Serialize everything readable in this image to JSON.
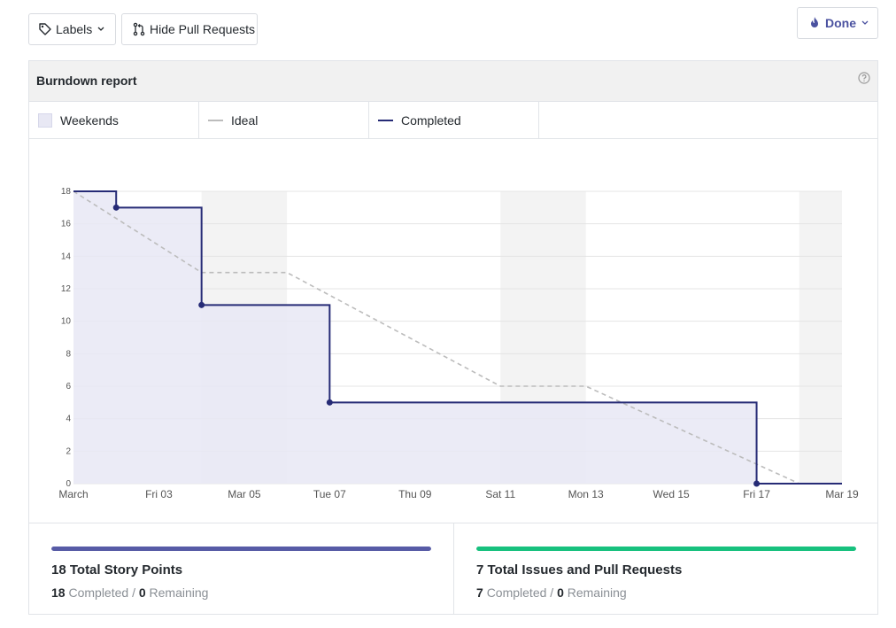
{
  "toolbar": {
    "labels_button": "Labels",
    "hide_pr_button": "Hide Pull Requests",
    "done_button": "Done"
  },
  "panel": {
    "title": "Burndown report"
  },
  "legend": {
    "weekends": "Weekends",
    "ideal": "Ideal",
    "completed": "Completed"
  },
  "colors": {
    "completed_line": "#262b76",
    "ideal_line": "#bcbcbc",
    "weekend_fill": "#f3f3f3",
    "completed_area": "#e8e8f4",
    "story_points_bar": "#575ba6",
    "issues_bar": "#17c17e"
  },
  "chart_data": {
    "type": "line",
    "xlabel": "",
    "ylabel": "",
    "ylim": [
      0,
      18
    ],
    "yticks": [
      0,
      2,
      4,
      6,
      8,
      10,
      12,
      14,
      16,
      18
    ],
    "xlim": [
      "2017-03-01",
      "2017-03-19"
    ],
    "x_tick_labels": [
      {
        "date": "2017-03-01",
        "label": "March"
      },
      {
        "date": "2017-03-03",
        "label": "Fri 03"
      },
      {
        "date": "2017-03-05",
        "label": "Mar 05"
      },
      {
        "date": "2017-03-07",
        "label": "Tue 07"
      },
      {
        "date": "2017-03-09",
        "label": "Thu 09"
      },
      {
        "date": "2017-03-11",
        "label": "Sat 11"
      },
      {
        "date": "2017-03-13",
        "label": "Mon 13"
      },
      {
        "date": "2017-03-15",
        "label": "Wed 15"
      },
      {
        "date": "2017-03-17",
        "label": "Fri 17"
      },
      {
        "date": "2017-03-19",
        "label": "Mar 19"
      }
    ],
    "weekends": [
      [
        "2017-03-04",
        "2017-03-06"
      ],
      [
        "2017-03-11",
        "2017-03-13"
      ],
      [
        "2017-03-18",
        "2017-03-19"
      ]
    ],
    "series": [
      {
        "name": "Ideal",
        "style": "dashed",
        "points": [
          {
            "x": "2017-03-01",
            "y": 18
          },
          {
            "x": "2017-03-04",
            "y": 13
          },
          {
            "x": "2017-03-06",
            "y": 13
          },
          {
            "x": "2017-03-11",
            "y": 6
          },
          {
            "x": "2017-03-13",
            "y": 6
          },
          {
            "x": "2017-03-18",
            "y": 0
          }
        ]
      },
      {
        "name": "Completed",
        "style": "step",
        "points": [
          {
            "x": "2017-03-01",
            "y": 18
          },
          {
            "x": "2017-03-02",
            "y": 17
          },
          {
            "x": "2017-03-04",
            "y": 11
          },
          {
            "x": "2017-03-07",
            "y": 5
          },
          {
            "x": "2017-03-17",
            "y": 0
          },
          {
            "x": "2017-03-19",
            "y": 0
          }
        ],
        "markers": [
          {
            "x": "2017-03-02",
            "y": 17
          },
          {
            "x": "2017-03-04",
            "y": 11
          },
          {
            "x": "2017-03-07",
            "y": 5
          },
          {
            "x": "2017-03-17",
            "y": 0
          }
        ]
      }
    ]
  },
  "stats": {
    "story_points": {
      "title": "18 Total Story Points",
      "completed_count": "18",
      "completed_label": "Completed",
      "sep": "/",
      "remaining_count": "0",
      "remaining_label": "Remaining",
      "progress": 1.0
    },
    "issues": {
      "title": "7 Total Issues and Pull Requests",
      "completed_count": "7",
      "completed_label": "Completed",
      "sep": "/",
      "remaining_count": "0",
      "remaining_label": "Remaining",
      "progress": 1.0
    }
  }
}
